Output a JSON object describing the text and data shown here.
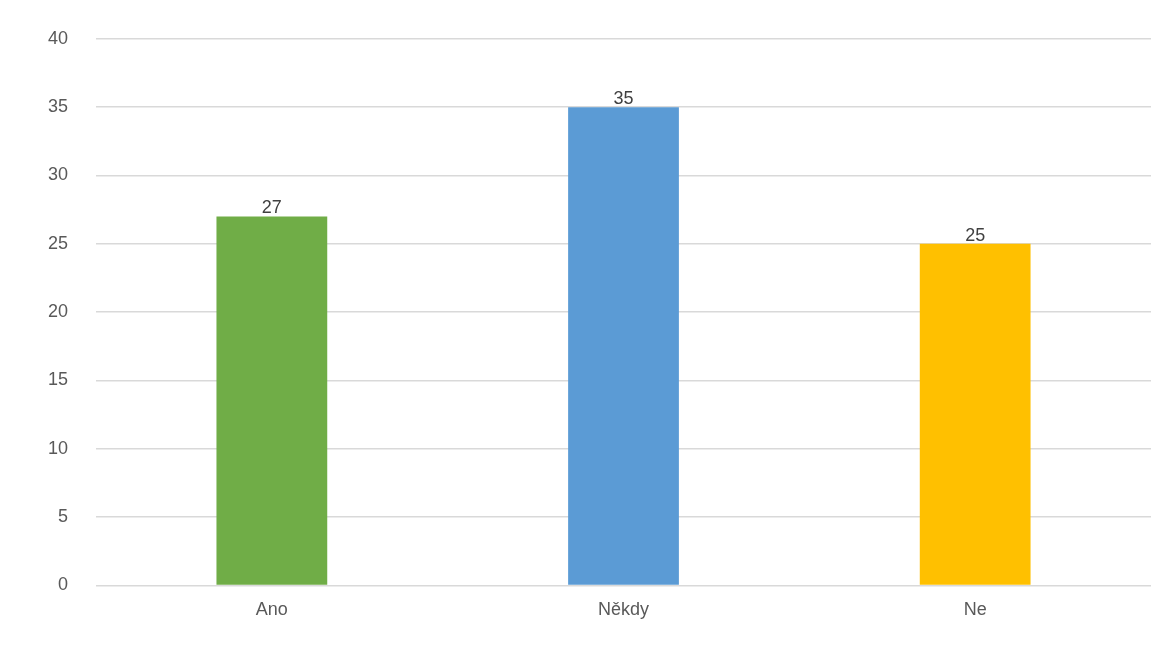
{
  "chart_data": {
    "type": "bar",
    "categories": [
      "Ano",
      "Někdy",
      "Ne"
    ],
    "values": [
      27,
      35,
      25
    ],
    "colors": [
      "#70ad47",
      "#5b9bd5",
      "#ffc000"
    ],
    "ylim": [
      0,
      40
    ],
    "yticks": [
      0,
      5,
      10,
      15,
      20,
      25,
      30,
      35,
      40
    ],
    "grid": "y",
    "legend": false,
    "data_labels": true
  }
}
